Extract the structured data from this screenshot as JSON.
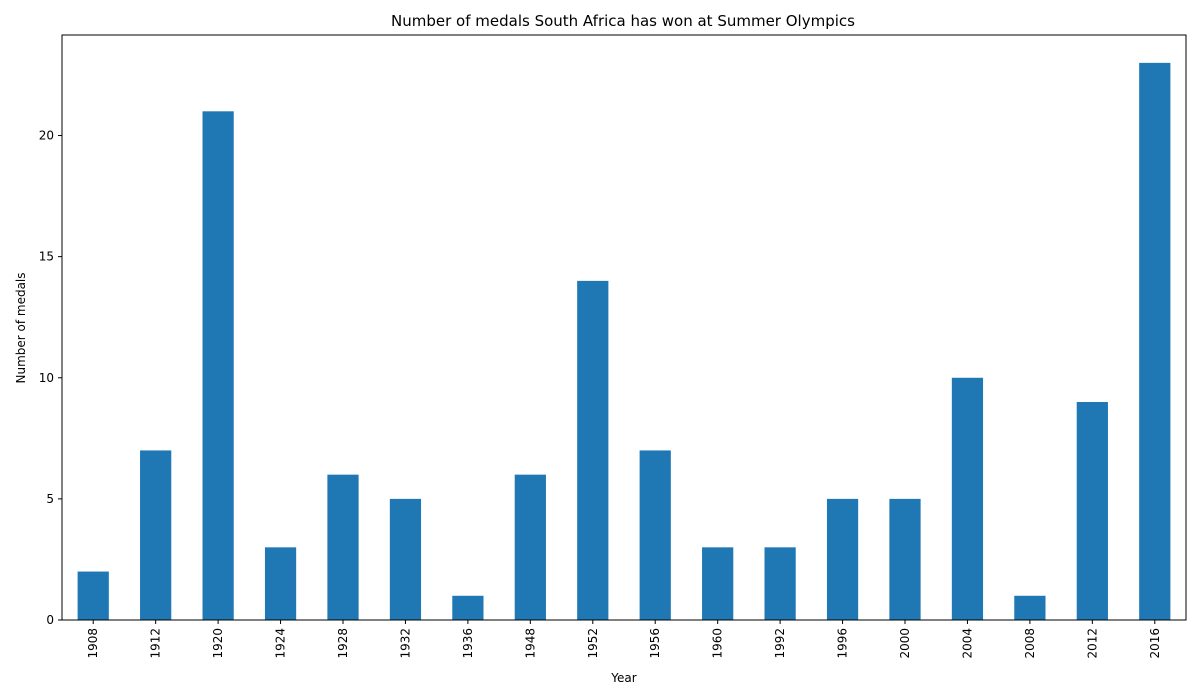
{
  "chart_data": {
    "type": "bar",
    "title": "Number of medals South Africa has won at Summer Olympics",
    "xlabel": "Year",
    "ylabel": "Number of medals",
    "categories": [
      "1908",
      "1912",
      "1920",
      "1924",
      "1928",
      "1932",
      "1936",
      "1948",
      "1952",
      "1956",
      "1960",
      "1992",
      "1996",
      "2000",
      "2004",
      "2008",
      "2012",
      "2016"
    ],
    "values": [
      2,
      7,
      21,
      3,
      6,
      5,
      1,
      6,
      14,
      7,
      3,
      3,
      5,
      5,
      10,
      1,
      9,
      23
    ],
    "ylim": [
      0,
      24.15
    ],
    "yticks": [
      0,
      5,
      10,
      15,
      20
    ],
    "grid": false,
    "bar_color": "#1f77b4"
  }
}
